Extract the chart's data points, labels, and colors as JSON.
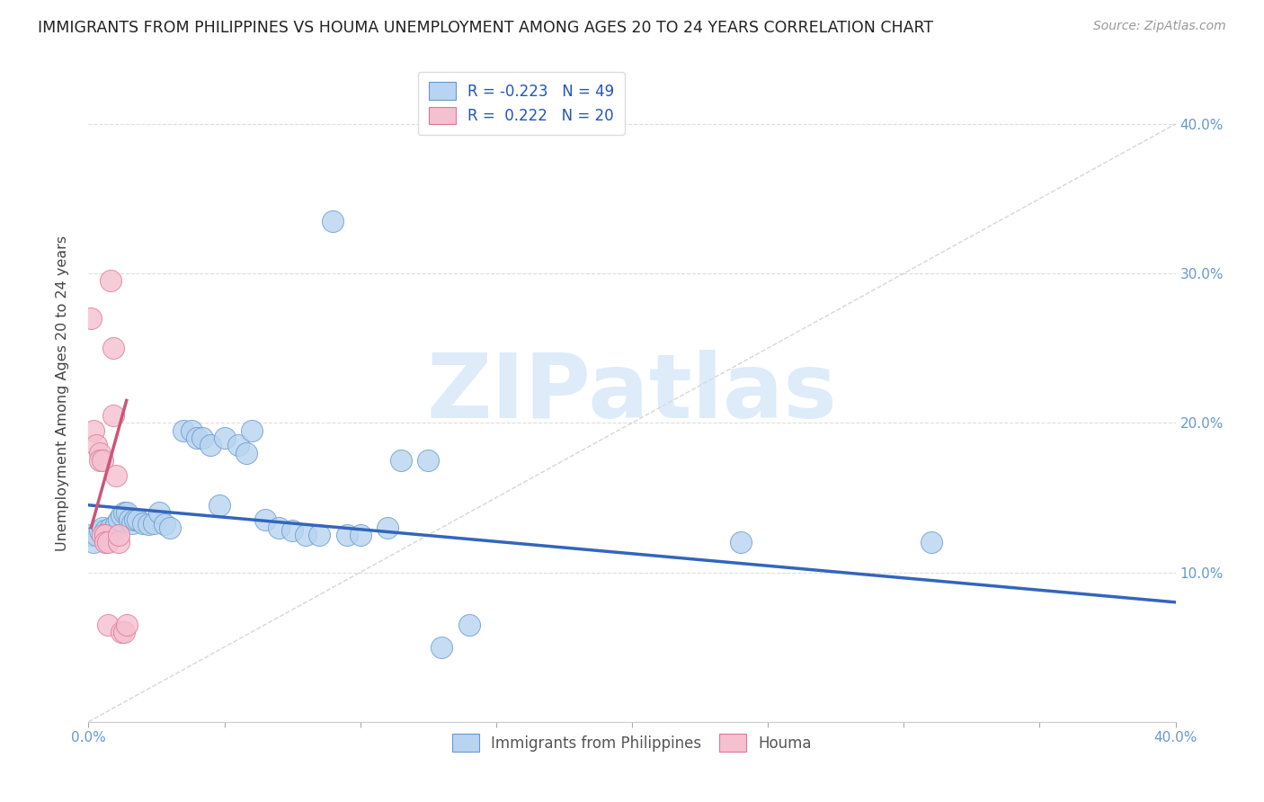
{
  "title": "IMMIGRANTS FROM PHILIPPINES VS HOUMA UNEMPLOYMENT AMONG AGES 20 TO 24 YEARS CORRELATION CHART",
  "source": "Source: ZipAtlas.com",
  "ylabel": "Unemployment Among Ages 20 to 24 years",
  "xlim": [
    0,
    0.4
  ],
  "ylim": [
    0,
    0.44
  ],
  "blue_label": "Immigrants from Philippines",
  "pink_label": "Houma",
  "blue_R": "-0.223",
  "blue_N": "49",
  "pink_R": "0.222",
  "pink_N": "20",
  "blue_color": "#b8d4f0",
  "blue_edge_color": "#6699cc",
  "blue_line_color": "#3366bb",
  "pink_color": "#f5c0d0",
  "pink_edge_color": "#dd7799",
  "pink_line_color": "#cc5577",
  "blue_scatter": [
    [
      0.001,
      0.125
    ],
    [
      0.002,
      0.12
    ],
    [
      0.003,
      0.125
    ],
    [
      0.004,
      0.128
    ],
    [
      0.005,
      0.13
    ],
    [
      0.006,
      0.128
    ],
    [
      0.007,
      0.127
    ],
    [
      0.008,
      0.13
    ],
    [
      0.009,
      0.128
    ],
    [
      0.01,
      0.132
    ],
    [
      0.011,
      0.135
    ],
    [
      0.012,
      0.138
    ],
    [
      0.013,
      0.14
    ],
    [
      0.014,
      0.14
    ],
    [
      0.015,
      0.135
    ],
    [
      0.016,
      0.133
    ],
    [
      0.017,
      0.135
    ],
    [
      0.018,
      0.135
    ],
    [
      0.02,
      0.133
    ],
    [
      0.022,
      0.132
    ],
    [
      0.024,
      0.133
    ],
    [
      0.026,
      0.14
    ],
    [
      0.028,
      0.132
    ],
    [
      0.03,
      0.13
    ],
    [
      0.035,
      0.195
    ],
    [
      0.038,
      0.195
    ],
    [
      0.04,
      0.19
    ],
    [
      0.042,
      0.19
    ],
    [
      0.045,
      0.185
    ],
    [
      0.048,
      0.145
    ],
    [
      0.05,
      0.19
    ],
    [
      0.055,
      0.185
    ],
    [
      0.058,
      0.18
    ],
    [
      0.06,
      0.195
    ],
    [
      0.065,
      0.135
    ],
    [
      0.07,
      0.13
    ],
    [
      0.075,
      0.128
    ],
    [
      0.08,
      0.125
    ],
    [
      0.085,
      0.125
    ],
    [
      0.09,
      0.335
    ],
    [
      0.095,
      0.125
    ],
    [
      0.1,
      0.125
    ],
    [
      0.11,
      0.13
    ],
    [
      0.115,
      0.175
    ],
    [
      0.125,
      0.175
    ],
    [
      0.13,
      0.05
    ],
    [
      0.14,
      0.065
    ],
    [
      0.24,
      0.12
    ],
    [
      0.31,
      0.12
    ]
  ],
  "pink_scatter": [
    [
      0.001,
      0.27
    ],
    [
      0.002,
      0.195
    ],
    [
      0.003,
      0.185
    ],
    [
      0.004,
      0.18
    ],
    [
      0.004,
      0.175
    ],
    [
      0.005,
      0.175
    ],
    [
      0.005,
      0.125
    ],
    [
      0.006,
      0.125
    ],
    [
      0.006,
      0.12
    ],
    [
      0.007,
      0.12
    ],
    [
      0.007,
      0.065
    ],
    [
      0.008,
      0.295
    ],
    [
      0.009,
      0.25
    ],
    [
      0.009,
      0.205
    ],
    [
      0.01,
      0.165
    ],
    [
      0.011,
      0.12
    ],
    [
      0.011,
      0.125
    ],
    [
      0.012,
      0.06
    ],
    [
      0.013,
      0.06
    ],
    [
      0.014,
      0.065
    ]
  ],
  "blue_trend_x": [
    0.0,
    0.4
  ],
  "blue_trend_y": [
    0.145,
    0.08
  ],
  "pink_trend_x": [
    0.001,
    0.014
  ],
  "pink_trend_y": [
    0.13,
    0.215
  ],
  "yticks_right": [
    0.1,
    0.2,
    0.3,
    0.4
  ],
  "yticks_grid": [
    0.1,
    0.2,
    0.3,
    0.4
  ],
  "xtick_labels_ends": true,
  "background_color": "#ffffff",
  "watermark_text": "ZIPatlas",
  "watermark_color": "#c8dff5",
  "title_color": "#222222",
  "title_fontsize": 12.5,
  "axis_label_color": "#6699cc",
  "ylabel_color": "#444444",
  "ylabel_fontsize": 11.5
}
